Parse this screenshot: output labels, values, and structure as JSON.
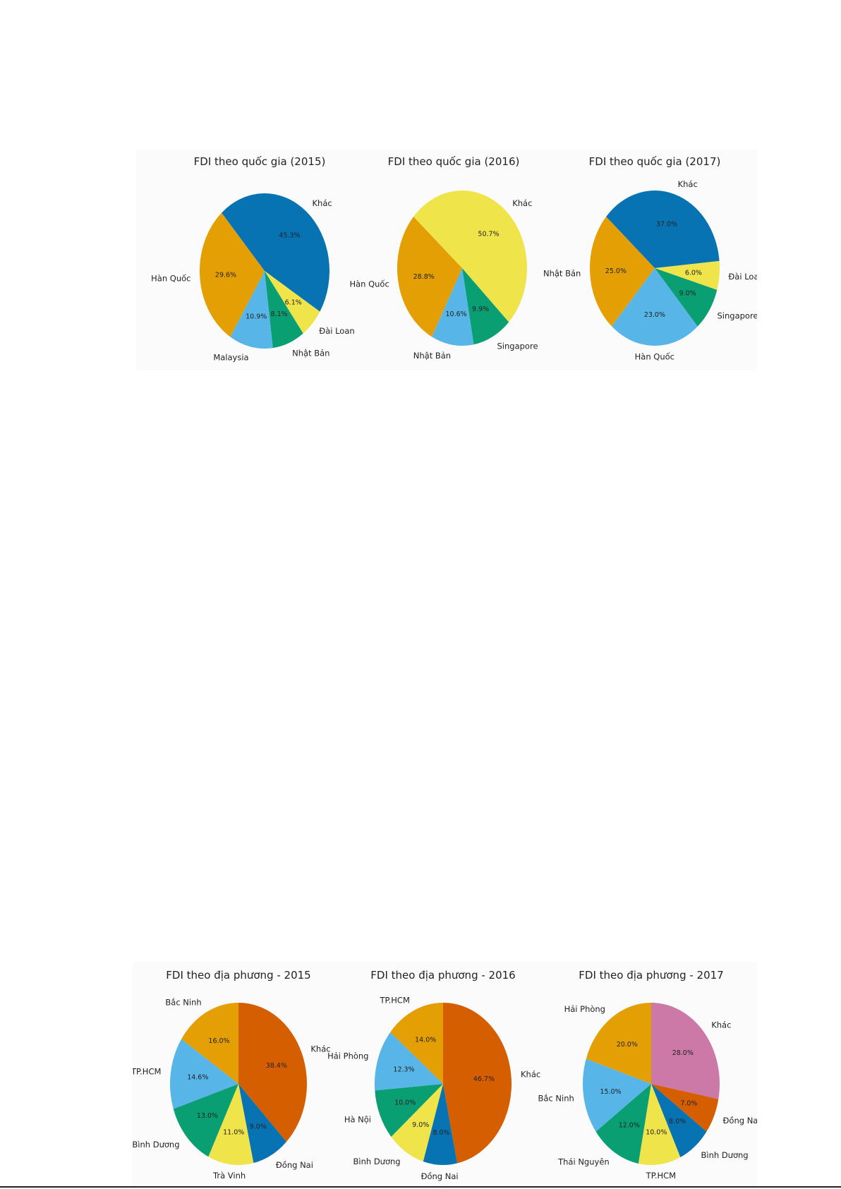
{
  "chart_data": [
    {
      "type": "pie",
      "title": "FDI theo quốc gia (2015)",
      "slices": [
        {
          "label": "Khác",
          "value": 45.3,
          "pct": "45.3%",
          "color": "#0773b2"
        },
        {
          "label": "Đài Loan",
          "value": 6.1,
          "pct": "6.1%",
          "color": "#efe44a"
        },
        {
          "label": "Nhật Bản",
          "value": 8.1,
          "pct": "8.1%",
          "color": "#0a9e73"
        },
        {
          "label": "Malaysia",
          "value": 10.9,
          "pct": "10.9%",
          "color": "#57b5e8"
        },
        {
          "label": "Hàn Quốc",
          "value": 29.6,
          "pct": "29.6%",
          "color": "#e39f03"
        }
      ]
    },
    {
      "type": "pie",
      "title": "FDI theo quốc gia (2016)",
      "slices": [
        {
          "label": "Khác",
          "value": 50.7,
          "pct": "50.7%",
          "color": "#efe44a"
        },
        {
          "label": "Singapore",
          "value": 9.9,
          "pct": "9.9%",
          "color": "#0a9e73"
        },
        {
          "label": "Nhật Bản",
          "value": 10.6,
          "pct": "10.6%",
          "color": "#57b5e8"
        },
        {
          "label": "Hàn Quốc",
          "value": 28.8,
          "pct": "28.8%",
          "color": "#e39f03"
        }
      ]
    },
    {
      "type": "pie",
      "title": "FDI theo quốc gia (2017)",
      "slices": [
        {
          "label": "Khác",
          "value": 37.0,
          "pct": "37.0%",
          "color": "#0773b2"
        },
        {
          "label": "Đài Loan",
          "value": 6.0,
          "pct": "6.0%",
          "color": "#efe44a"
        },
        {
          "label": "Singapore",
          "value": 9.0,
          "pct": "9.0%",
          "color": "#0a9e73"
        },
        {
          "label": "Hàn Quốc",
          "value": 23.0,
          "pct": "23.0%",
          "color": "#57b5e8"
        },
        {
          "label": "Nhật Bản",
          "value": 25.0,
          "pct": "25.0%",
          "color": "#e39f03"
        }
      ]
    },
    {
      "type": "pie",
      "title": "FDI theo địa phương - 2015",
      "slices": [
        {
          "label": "Khác",
          "value": 38.4,
          "pct": "38.4%",
          "color": "#d55e00"
        },
        {
          "label": "Đồng Nai",
          "value": 9.0,
          "pct": "9.0%",
          "color": "#0773b2"
        },
        {
          "label": "Trà Vinh",
          "value": 11.0,
          "pct": "11.0%",
          "color": "#efe44a"
        },
        {
          "label": "Bình Dương",
          "value": 13.0,
          "pct": "13.0%",
          "color": "#0a9e73"
        },
        {
          "label": "TP.HCM",
          "value": 14.6,
          "pct": "14.6%",
          "color": "#57b5e8"
        },
        {
          "label": "Bắc Ninh",
          "value": 16.0,
          "pct": "16.0%",
          "color": "#e39f03"
        }
      ]
    },
    {
      "type": "pie",
      "title": "FDI theo địa phương - 2016",
      "slices": [
        {
          "label": "Khác",
          "value": 46.7,
          "pct": "46.7%",
          "color": "#d55e00"
        },
        {
          "label": "Đồng Nai",
          "value": 8.0,
          "pct": "8.0%",
          "color": "#0773b2"
        },
        {
          "label": "Bình Dương",
          "value": 9.0,
          "pct": "9.0%",
          "color": "#efe44a"
        },
        {
          "label": "Hà Nội",
          "value": 10.0,
          "pct": "10.0%",
          "color": "#0a9e73"
        },
        {
          "label": "Hải Phòng",
          "value": 12.3,
          "pct": "12.3%",
          "color": "#57b5e8"
        },
        {
          "label": "TP.HCM",
          "value": 14.0,
          "pct": "14.0%",
          "color": "#e39f03"
        }
      ]
    },
    {
      "type": "pie",
      "title": "FDI theo địa phương - 2017",
      "slices": [
        {
          "label": "Khác",
          "value": 28.0,
          "pct": "28.0%",
          "color": "#cc79a7"
        },
        {
          "label": "Đồng Nai",
          "value": 7.0,
          "pct": "7.0%",
          "color": "#d55e00"
        },
        {
          "label": "Bình Dương",
          "value": 8.0,
          "pct": "8.0%",
          "color": "#0773b2"
        },
        {
          "label": "TP.HCM",
          "value": 10.0,
          "pct": "10.0%",
          "color": "#efe44a"
        },
        {
          "label": "Thái Nguyên",
          "value": 12.0,
          "pct": "12.0%",
          "color": "#0a9e73"
        },
        {
          "label": "Bắc Ninh",
          "value": 15.0,
          "pct": "15.0%",
          "color": "#57b5e8"
        },
        {
          "label": "Hải Phòng",
          "value": 20.0,
          "pct": "20.0%",
          "color": "#e39f03"
        }
      ]
    }
  ]
}
